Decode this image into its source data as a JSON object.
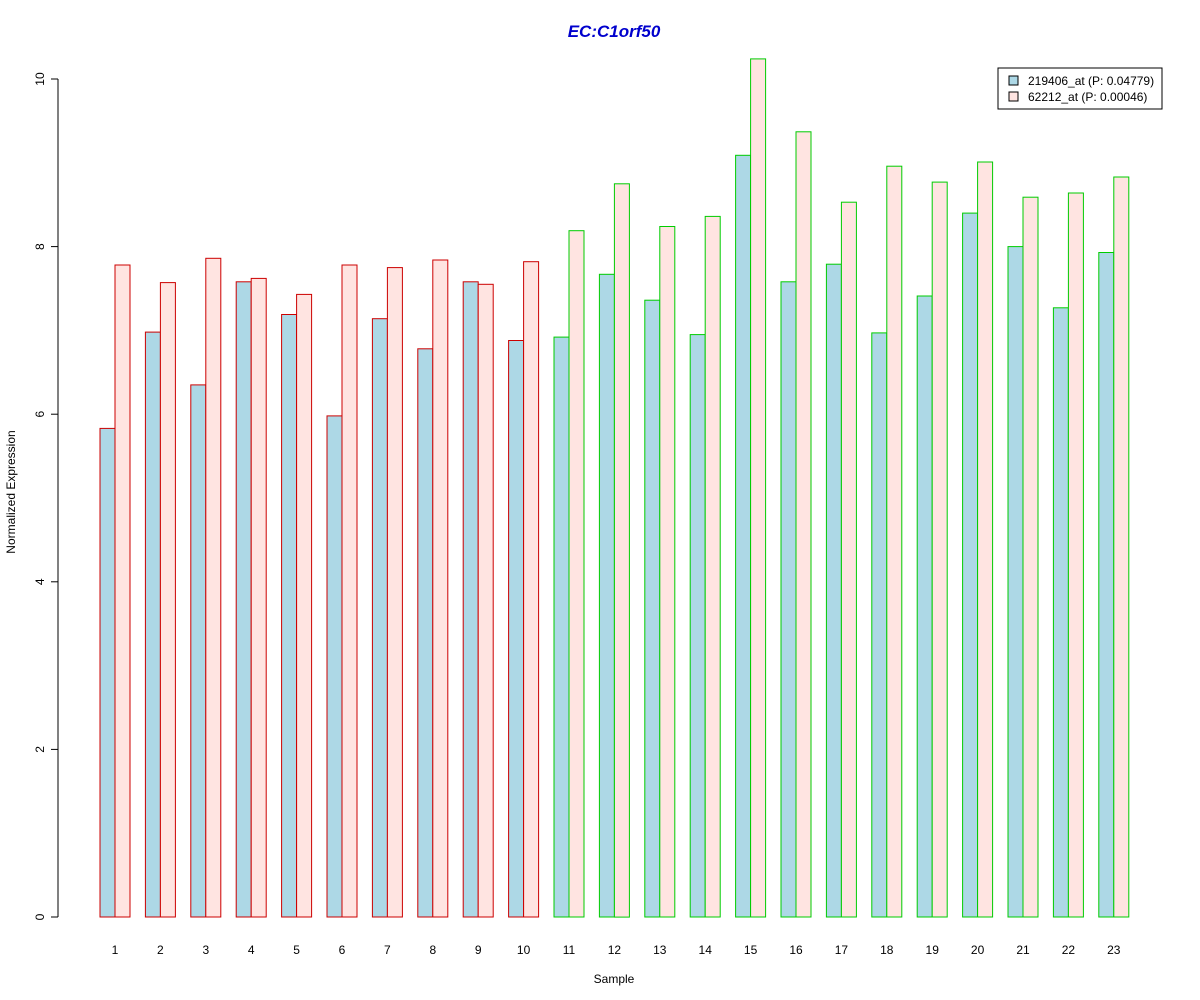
{
  "chart_data": {
    "type": "bar",
    "title": "EC:C1orf50",
    "title_color": "#0000CD",
    "xlabel": "Sample",
    "ylabel": "Normalized Expression",
    "ylim": [
      0,
      10.25
    ],
    "yticks": [
      0,
      2,
      4,
      6,
      8,
      10
    ],
    "grid": false,
    "legend_position": "top-right",
    "categories": [
      "1",
      "2",
      "3",
      "4",
      "5",
      "6",
      "7",
      "8",
      "9",
      "10",
      "11",
      "12",
      "13",
      "14",
      "15",
      "16",
      "17",
      "18",
      "19",
      "20",
      "21",
      "22",
      "23"
    ],
    "group_border_colors": [
      "#CC0000",
      "#CC0000",
      "#CC0000",
      "#CC0000",
      "#CC0000",
      "#CC0000",
      "#CC0000",
      "#CC0000",
      "#CC0000",
      "#CC0000",
      "#00CC00",
      "#00CC00",
      "#00CC00",
      "#00CC00",
      "#00CC00",
      "#00CC00",
      "#00CC00",
      "#00CC00",
      "#00CC00",
      "#00CC00",
      "#00CC00",
      "#00CC00",
      "#00CC00"
    ],
    "series": [
      {
        "name": "219406_at (P: 0.04779)",
        "fill": "#ADD8E6",
        "values": [
          5.83,
          6.98,
          6.35,
          7.58,
          7.19,
          5.98,
          7.14,
          6.78,
          7.58,
          6.88,
          6.92,
          7.67,
          7.36,
          6.95,
          9.09,
          7.58,
          7.79,
          6.97,
          7.41,
          8.4,
          8.0,
          7.27,
          7.93
        ]
      },
      {
        "name": "62212_at (P: 0.00046)",
        "fill": "#FFE4E1",
        "values": [
          7.78,
          7.57,
          7.86,
          7.62,
          7.43,
          7.78,
          7.75,
          7.84,
          7.55,
          7.82,
          8.19,
          8.75,
          8.24,
          8.36,
          10.24,
          9.37,
          8.53,
          8.96,
          8.77,
          9.01,
          8.59,
          8.64,
          8.83
        ]
      }
    ]
  }
}
